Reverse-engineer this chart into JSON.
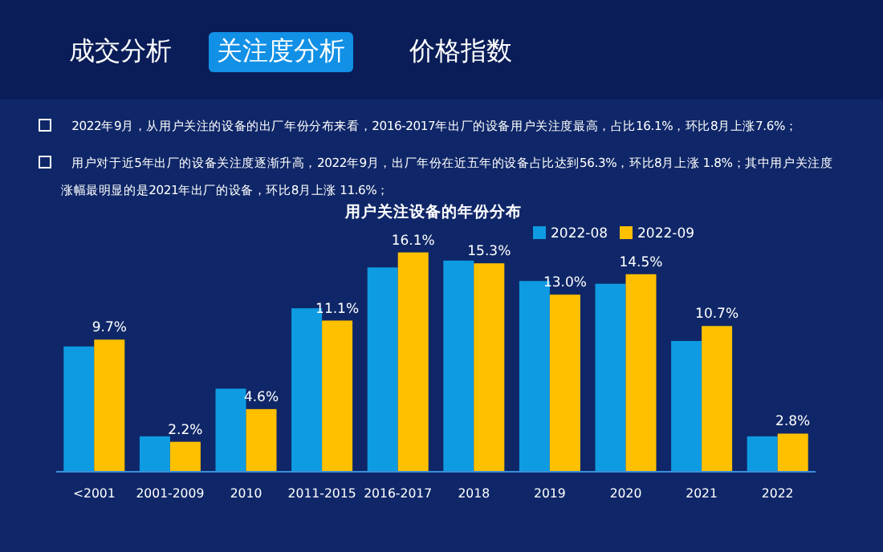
{
  "chart_data": {
    "type": "bar",
    "title": "用户关注设备的年份分布",
    "categories": [
      "<2001",
      "2001-2009",
      "2010",
      "2011-2015",
      "2016-2017",
      "2018",
      "2019",
      "2020",
      "2021",
      "2022"
    ],
    "series": [
      {
        "name": "2022-08",
        "color": "#0e9be2",
        "values": [
          9.2,
          2.6,
          6.1,
          12.0,
          15.0,
          15.5,
          14.0,
          13.8,
          9.6,
          2.6
        ]
      },
      {
        "name": "2022-09",
        "color": "#ffc000",
        "values": [
          9.7,
          2.2,
          4.6,
          11.1,
          16.1,
          15.3,
          13.0,
          14.5,
          10.7,
          2.8
        ],
        "value_labels": [
          "9.7%",
          "2.2%",
          "4.6%",
          "11.1%",
          "16.1%",
          "15.3%",
          "13.0%",
          "14.5%",
          "10.7%",
          "2.8%"
        ]
      }
    ],
    "legend": "top right",
    "annotations": [
      "成交分析",
      "关注度分析",
      "价格指数",
      "2022年9月，从用户关注的设备的出厂年份分布来看，2016-2017年出厂的设备用户关注度最高，占比16.1%，环比8月上涨7.6%；",
      "用户对于近5年出厂的设备关注度逐渐升高，2022年9月，出厂年份在近五年的设备占比达到56.3%，环比8月上涨 1.8%；其中用户关注度涨幅最明显的是2021年出厂的设备，环比8月上涨 11.6%；"
    ]
  }
}
